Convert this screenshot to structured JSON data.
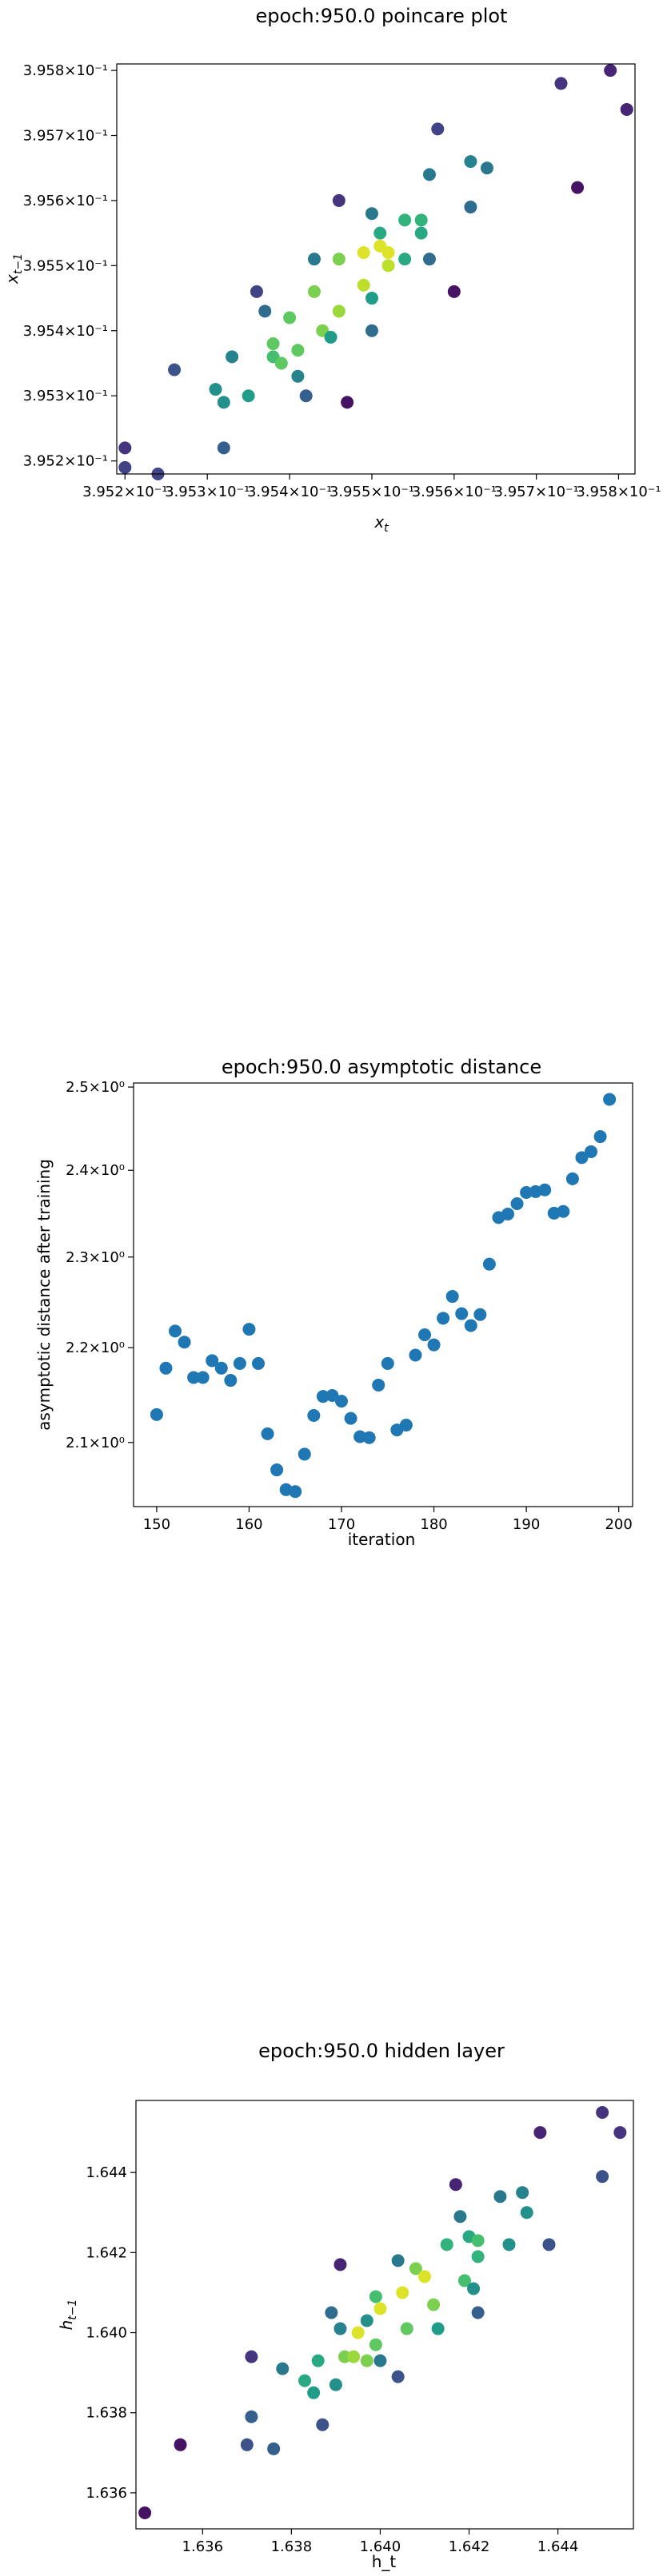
{
  "chart_data": [
    {
      "type": "scatter",
      "title": "epoch:950.0 poincare plot",
      "xlabel": "x_t",
      "ylabel": "x_{t-1}",
      "xscale": "log",
      "yscale": "log",
      "xlim": [
        0.39519,
        0.39582
      ],
      "ylim": [
        0.39518,
        0.39581
      ],
      "x_ticks": [
        0.3952,
        0.3953,
        0.3954,
        0.3955,
        0.3956,
        0.3957,
        0.3958
      ],
      "x_tick_labels": [
        "3.952×10⁻¹",
        "3.953×10⁻¹",
        "3.954×10⁻¹",
        "3.955×10⁻¹",
        "3.956×10⁻¹",
        "3.957×10⁻¹",
        "3.958×10⁻¹"
      ],
      "y_ticks": [
        0.3952,
        0.3953,
        0.3954,
        0.3955,
        0.3956,
        0.3957,
        0.3958
      ],
      "y_tick_labels": [
        "3.952×10⁻¹",
        "3.953×10⁻¹",
        "3.954×10⁻¹",
        "3.955×10⁻¹",
        "3.956×10⁻¹",
        "3.957×10⁻¹",
        "3.958×10⁻¹"
      ],
      "colormap": "viridis",
      "points": [
        {
          "x": 0.3952,
          "y": 0.39522,
          "c": 0.15
        },
        {
          "x": 0.3952,
          "y": 0.39519,
          "c": 0.2
        },
        {
          "x": 0.39524,
          "y": 0.39518,
          "c": 0.2
        },
        {
          "x": 0.39526,
          "y": 0.39534,
          "c": 0.25
        },
        {
          "x": 0.39531,
          "y": 0.39531,
          "c": 0.5
        },
        {
          "x": 0.39532,
          "y": 0.39529,
          "c": 0.5
        },
        {
          "x": 0.39532,
          "y": 0.39522,
          "c": 0.3
        },
        {
          "x": 0.39533,
          "y": 0.39536,
          "c": 0.45
        },
        {
          "x": 0.39535,
          "y": 0.3953,
          "c": 0.55
        },
        {
          "x": 0.39536,
          "y": 0.39546,
          "c": 0.2
        },
        {
          "x": 0.39537,
          "y": 0.39543,
          "c": 0.35
        },
        {
          "x": 0.39538,
          "y": 0.39536,
          "c": 0.7
        },
        {
          "x": 0.39538,
          "y": 0.39538,
          "c": 0.75
        },
        {
          "x": 0.39539,
          "y": 0.39535,
          "c": 0.75
        },
        {
          "x": 0.3954,
          "y": 0.39542,
          "c": 0.75
        },
        {
          "x": 0.39541,
          "y": 0.39533,
          "c": 0.45
        },
        {
          "x": 0.39541,
          "y": 0.39537,
          "c": 0.75
        },
        {
          "x": 0.39542,
          "y": 0.3953,
          "c": 0.3
        },
        {
          "x": 0.39543,
          "y": 0.39546,
          "c": 0.8
        },
        {
          "x": 0.39543,
          "y": 0.39551,
          "c": 0.4
        },
        {
          "x": 0.39544,
          "y": 0.3954,
          "c": 0.8
        },
        {
          "x": 0.39545,
          "y": 0.39539,
          "c": 0.55
        },
        {
          "x": 0.39546,
          "y": 0.39551,
          "c": 0.8
        },
        {
          "x": 0.39546,
          "y": 0.39543,
          "c": 0.85
        },
        {
          "x": 0.39546,
          "y": 0.3956,
          "c": 0.15
        },
        {
          "x": 0.39547,
          "y": 0.39529,
          "c": 0.05
        },
        {
          "x": 0.39549,
          "y": 0.39547,
          "c": 0.9
        },
        {
          "x": 0.39549,
          "y": 0.39552,
          "c": 0.95
        },
        {
          "x": 0.3955,
          "y": 0.3954,
          "c": 0.35
        },
        {
          "x": 0.3955,
          "y": 0.39558,
          "c": 0.4
        },
        {
          "x": 0.3955,
          "y": 0.39545,
          "c": 0.55
        },
        {
          "x": 0.39551,
          "y": 0.39555,
          "c": 0.6
        },
        {
          "x": 0.39551,
          "y": 0.39553,
          "c": 0.95
        },
        {
          "x": 0.39552,
          "y": 0.39552,
          "c": 0.95
        },
        {
          "x": 0.39552,
          "y": 0.3955,
          "c": 0.9
        },
        {
          "x": 0.39554,
          "y": 0.39551,
          "c": 0.6
        },
        {
          "x": 0.39554,
          "y": 0.39557,
          "c": 0.65
        },
        {
          "x": 0.39556,
          "y": 0.39557,
          "c": 0.65
        },
        {
          "x": 0.39556,
          "y": 0.39555,
          "c": 0.6
        },
        {
          "x": 0.39557,
          "y": 0.39564,
          "c": 0.4
        },
        {
          "x": 0.39557,
          "y": 0.39551,
          "c": 0.35
        },
        {
          "x": 0.39558,
          "y": 0.39571,
          "c": 0.2
        },
        {
          "x": 0.3956,
          "y": 0.39546,
          "c": 0.05
        },
        {
          "x": 0.39562,
          "y": 0.39566,
          "c": 0.45
        },
        {
          "x": 0.39562,
          "y": 0.39559,
          "c": 0.35
        },
        {
          "x": 0.39564,
          "y": 0.39565,
          "c": 0.4
        },
        {
          "x": 0.39573,
          "y": 0.39578,
          "c": 0.15
        },
        {
          "x": 0.39575,
          "y": 0.39562,
          "c": 0.05
        },
        {
          "x": 0.39579,
          "y": 0.3958,
          "c": 0.1
        },
        {
          "x": 0.39581,
          "y": 0.39574,
          "c": 0.1
        }
      ]
    },
    {
      "type": "scatter",
      "title": "epoch:950.0 asymptotic distance",
      "xlabel": "iteration",
      "ylabel": "asymptotic distance after training",
      "yscale": "log",
      "xlim": [
        147.5,
        201.5
      ],
      "ylim": [
        2.035,
        2.505
      ],
      "x_ticks": [
        150,
        160,
        170,
        180,
        190,
        200
      ],
      "x_tick_labels": [
        "150",
        "160",
        "170",
        "180",
        "190",
        "200"
      ],
      "y_ticks": [
        2.1,
        2.2,
        2.3,
        2.4,
        2.5
      ],
      "y_tick_labels": [
        "2.1×10⁰",
        "2.2×10⁰",
        "2.3×10⁰",
        "2.4×10⁰",
        "2.5×10⁰"
      ],
      "color": "#1f77b4",
      "x": [
        150,
        151,
        152,
        153,
        154,
        155,
        156,
        157,
        158,
        159,
        160,
        161,
        162,
        163,
        164,
        165,
        166,
        167,
        168,
        169,
        170,
        171,
        172,
        173,
        174,
        175,
        176,
        177,
        178,
        179,
        180,
        181,
        182,
        183,
        184,
        185,
        186,
        187,
        188,
        189,
        190,
        191,
        192,
        193,
        194,
        195,
        196,
        197,
        198,
        199
      ],
      "y": [
        2.129,
        2.178,
        2.218,
        2.206,
        2.168,
        2.168,
        2.186,
        2.178,
        2.165,
        2.183,
        2.22,
        2.183,
        2.109,
        2.072,
        2.052,
        2.05,
        2.088,
        2.128,
        2.148,
        2.149,
        2.143,
        2.125,
        2.106,
        2.105,
        2.16,
        2.183,
        2.113,
        2.118,
        2.192,
        2.214,
        2.203,
        2.232,
        2.256,
        2.237,
        2.224,
        2.236,
        2.292,
        2.345,
        2.349,
        2.361,
        2.374,
        2.375,
        2.377,
        2.35,
        2.352,
        2.39,
        2.415,
        2.422,
        2.44,
        2.485
      ]
    },
    {
      "type": "scatter",
      "title": "epoch:950.0 hidden layer",
      "xlabel": "h_t",
      "ylabel": "h_{t-1}",
      "xlim": [
        1.6345,
        1.6457
      ],
      "ylim": [
        1.6351,
        1.6458
      ],
      "x_ticks": [
        1.636,
        1.638,
        1.64,
        1.642,
        1.644
      ],
      "x_tick_labels": [
        "1.636",
        "1.638",
        "1.640",
        "1.642",
        "1.644"
      ],
      "y_ticks": [
        1.636,
        1.638,
        1.64,
        1.642,
        1.644
      ],
      "y_tick_labels": [
        "1.636",
        "1.638",
        "1.640",
        "1.642",
        "1.644"
      ],
      "colormap": "viridis",
      "points": [
        {
          "x": 1.6347,
          "y": 1.6355,
          "c": 0.05
        },
        {
          "x": 1.6355,
          "y": 1.6372,
          "c": 0.05
        },
        {
          "x": 1.637,
          "y": 1.6372,
          "c": 0.25
        },
        {
          "x": 1.6371,
          "y": 1.6394,
          "c": 0.15
        },
        {
          "x": 1.6371,
          "y": 1.6379,
          "c": 0.3
        },
        {
          "x": 1.6376,
          "y": 1.6371,
          "c": 0.3
        },
        {
          "x": 1.6378,
          "y": 1.6391,
          "c": 0.4
        },
        {
          "x": 1.6383,
          "y": 1.6388,
          "c": 0.6
        },
        {
          "x": 1.6385,
          "y": 1.6385,
          "c": 0.55
        },
        {
          "x": 1.6386,
          "y": 1.6393,
          "c": 0.6
        },
        {
          "x": 1.6387,
          "y": 1.6377,
          "c": 0.25
        },
        {
          "x": 1.6389,
          "y": 1.6405,
          "c": 0.35
        },
        {
          "x": 1.639,
          "y": 1.6387,
          "c": 0.5
        },
        {
          "x": 1.6391,
          "y": 1.6417,
          "c": 0.1
        },
        {
          "x": 1.6391,
          "y": 1.6401,
          "c": 0.45
        },
        {
          "x": 1.6392,
          "y": 1.6394,
          "c": 0.8
        },
        {
          "x": 1.6394,
          "y": 1.6394,
          "c": 0.85
        },
        {
          "x": 1.6395,
          "y": 1.64,
          "c": 0.95
        },
        {
          "x": 1.6397,
          "y": 1.6393,
          "c": 0.8
        },
        {
          "x": 1.6397,
          "y": 1.6403,
          "c": 0.5
        },
        {
          "x": 1.6399,
          "y": 1.6409,
          "c": 0.7
        },
        {
          "x": 1.6399,
          "y": 1.6397,
          "c": 0.75
        },
        {
          "x": 1.64,
          "y": 1.6406,
          "c": 0.95
        },
        {
          "x": 1.64,
          "y": 1.6393,
          "c": 0.4
        },
        {
          "x": 1.6404,
          "y": 1.6418,
          "c": 0.4
        },
        {
          "x": 1.6404,
          "y": 1.6389,
          "c": 0.25
        },
        {
          "x": 1.6405,
          "y": 1.641,
          "c": 0.95
        },
        {
          "x": 1.6406,
          "y": 1.6401,
          "c": 0.75
        },
        {
          "x": 1.6408,
          "y": 1.6416,
          "c": 0.8
        },
        {
          "x": 1.641,
          "y": 1.6414,
          "c": 0.95
        },
        {
          "x": 1.6412,
          "y": 1.6407,
          "c": 0.8
        },
        {
          "x": 1.6413,
          "y": 1.6401,
          "c": 0.55
        },
        {
          "x": 1.6415,
          "y": 1.6422,
          "c": 0.65
        },
        {
          "x": 1.6417,
          "y": 1.6437,
          "c": 0.1
        },
        {
          "x": 1.6418,
          "y": 1.6429,
          "c": 0.4
        },
        {
          "x": 1.6419,
          "y": 1.6413,
          "c": 0.7
        },
        {
          "x": 1.642,
          "y": 1.6424,
          "c": 0.6
        },
        {
          "x": 1.6421,
          "y": 1.6411,
          "c": 0.5
        },
        {
          "x": 1.6422,
          "y": 1.6405,
          "c": 0.3
        },
        {
          "x": 1.6422,
          "y": 1.6419,
          "c": 0.65
        },
        {
          "x": 1.6422,
          "y": 1.6423,
          "c": 0.7
        },
        {
          "x": 1.6427,
          "y": 1.6434,
          "c": 0.4
        },
        {
          "x": 1.6429,
          "y": 1.6422,
          "c": 0.5
        },
        {
          "x": 1.6432,
          "y": 1.6435,
          "c": 0.45
        },
        {
          "x": 1.6433,
          "y": 1.643,
          "c": 0.5
        },
        {
          "x": 1.6436,
          "y": 1.645,
          "c": 0.1
        },
        {
          "x": 1.6438,
          "y": 1.6422,
          "c": 0.25
        },
        {
          "x": 1.645,
          "y": 1.6455,
          "c": 0.15
        },
        {
          "x": 1.645,
          "y": 1.6439,
          "c": 0.25
        },
        {
          "x": 1.6454,
          "y": 1.645,
          "c": 0.15
        }
      ]
    }
  ]
}
